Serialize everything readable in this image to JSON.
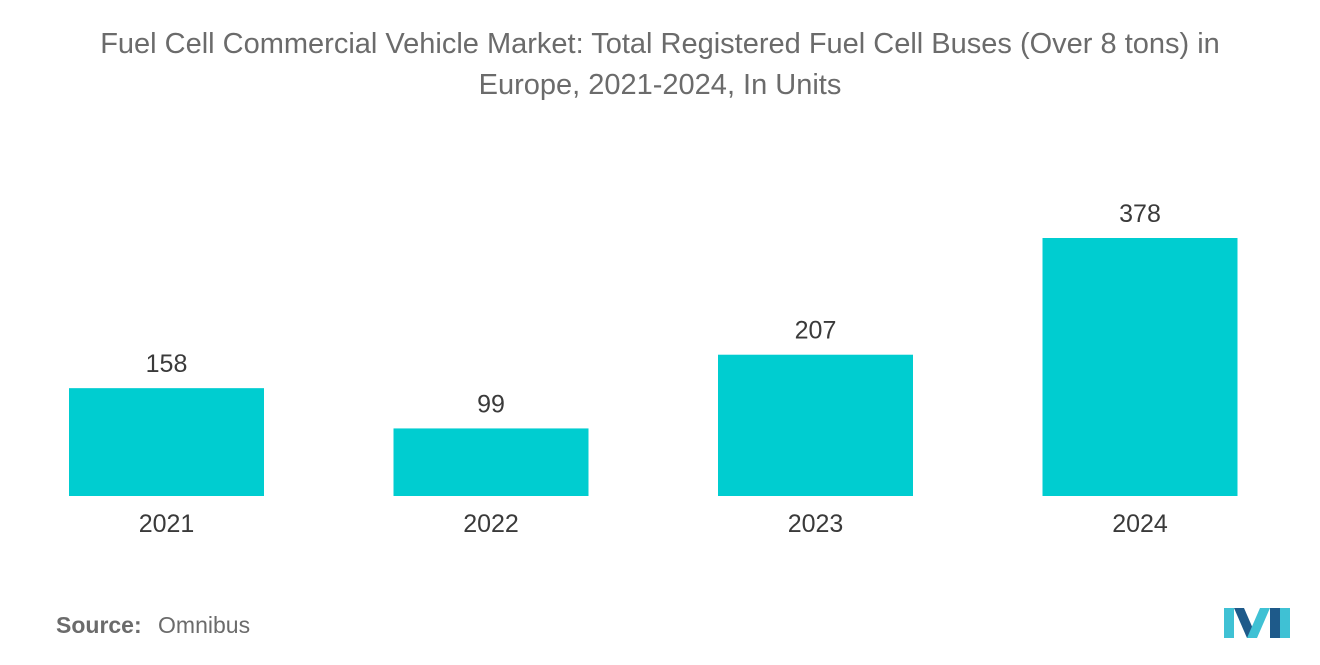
{
  "chart_data": {
    "type": "bar",
    "title_lines": [
      "Fuel Cell Commercial Vehicle Market: Total Registered Fuel Cell Buses (Over 8 tons) in",
      "Europe, 2021-2024, In Units"
    ],
    "categories": [
      "2021",
      "2022",
      "2023",
      "2024"
    ],
    "values": [
      158,
      99,
      207,
      378
    ],
    "ylim": [
      0,
      378
    ],
    "xlabel": "",
    "ylabel": "",
    "grid": false,
    "bar_color": "#00cdd0"
  },
  "source": {
    "label": "Source:",
    "value": "Omnibus"
  },
  "logo": {
    "icon": "mordor-intelligence-logo-icon",
    "color_light": "#3fc1d4",
    "color_dark": "#1e5a8a"
  }
}
